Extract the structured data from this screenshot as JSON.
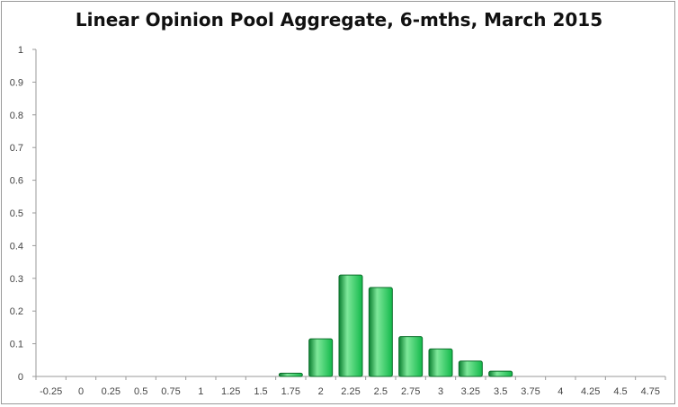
{
  "colors": {
    "bar": "#12b84a",
    "bar_light": "#7ee89a",
    "bar_dark": "#0a7f30",
    "bar_stroke": "#0b6e2a",
    "axis": "#9a9a9a"
  },
  "chart_data": {
    "type": "bar",
    "title": "Linear Opinion Pool Aggregate, 6-mths, March 2015",
    "xlabel": "",
    "ylabel": "",
    "ylim": [
      0,
      1
    ],
    "yticks": [
      "0",
      "0.1",
      "0.2",
      "0.3",
      "0.4",
      "0.5",
      "0.6",
      "0.7",
      "0.8",
      "0.9",
      "1"
    ],
    "grid": false,
    "legend": "none",
    "categories": [
      "-0.25",
      "0",
      "0.25",
      "0.5",
      "0.75",
      "1",
      "1.25",
      "1.5",
      "1.75",
      "2",
      "2.25",
      "2.5",
      "2.75",
      "3",
      "3.25",
      "3.5",
      "3.75",
      "4",
      "4.25",
      "4.5",
      "4.75"
    ],
    "values": [
      0,
      0,
      0,
      0,
      0,
      0,
      0,
      0,
      0.01,
      0.115,
      0.31,
      0.272,
      0.122,
      0.084,
      0.047,
      0.016,
      0,
      0,
      0,
      0,
      0
    ]
  }
}
